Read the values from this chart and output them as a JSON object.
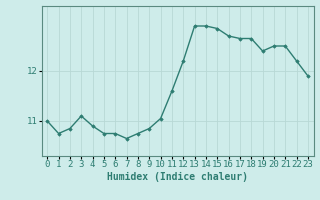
{
  "x": [
    0,
    1,
    2,
    3,
    4,
    5,
    6,
    7,
    8,
    9,
    10,
    11,
    12,
    13,
    14,
    15,
    16,
    17,
    18,
    19,
    20,
    21,
    22,
    23
  ],
  "y": [
    11.0,
    10.75,
    10.85,
    11.1,
    10.9,
    10.75,
    10.75,
    10.65,
    10.75,
    10.85,
    11.05,
    11.6,
    12.2,
    12.9,
    12.9,
    12.85,
    12.7,
    12.65,
    12.65,
    12.4,
    12.5,
    12.5,
    12.2,
    11.9
  ],
  "line_color": "#2e7d72",
  "marker": "D",
  "marker_size": 1.8,
  "line_width": 1.0,
  "bg_color": "#ceecea",
  "grid_color": "#b8d8d5",
  "xlabel": "Humidex (Indice chaleur)",
  "xlabel_fontsize": 7,
  "yticks": [
    11,
    12
  ],
  "ylim": [
    10.3,
    13.3
  ],
  "xlim": [
    -0.5,
    23.5
  ],
  "tick_fontsize": 6.5,
  "spine_color": "#5a8a80"
}
